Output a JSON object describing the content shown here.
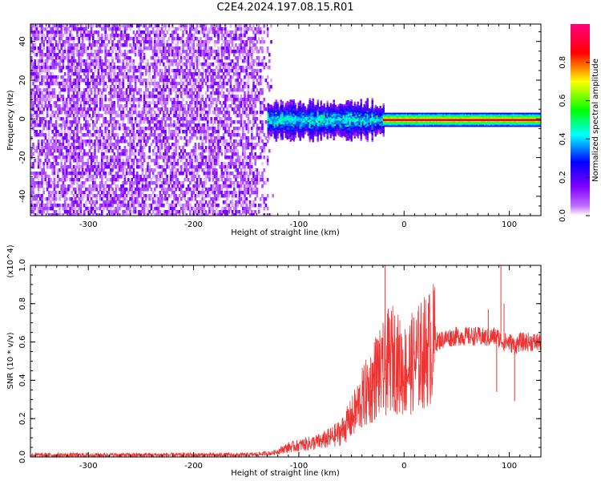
{
  "title": "C2E4.2024.197.08.15.R01",
  "chart_data": [
    {
      "type": "heatmap",
      "xlabel": "Height of straight line (km)",
      "ylabel": "Frequency (Hz)",
      "xlim": [
        -355,
        130
      ],
      "ylim": [
        -50,
        49
      ],
      "xticks": [
        -300,
        -200,
        -100,
        0,
        100
      ],
      "yticks": [
        -40,
        -20,
        0,
        20,
        40
      ],
      "colorbar": {
        "label": "Normalized spectral amplitude",
        "range": [
          0,
          1
        ],
        "ticks": [
          0.0,
          0.2,
          0.4,
          0.6,
          0.8
        ],
        "colormap": [
          "#ffffff",
          "#a000ff",
          "#0000ff",
          "#00ffff",
          "#00ff00",
          "#ffff00",
          "#ff0000",
          "#ff0080"
        ]
      },
      "regions": [
        {
          "x": [
            -355,
            -125
          ],
          "freq": [
            -50,
            49
          ],
          "amplitude": 0.15
        },
        {
          "x": [
            -130,
            -20
          ],
          "freq": [
            -10,
            10
          ],
          "amplitude": 0.35
        },
        {
          "x": [
            -20,
            130
          ],
          "freq": [
            -3,
            3
          ],
          "amplitude": 0.85
        }
      ]
    },
    {
      "type": "line",
      "xlabel": "Height of straight line (km)",
      "ylabel": "SNR (10 * v/v)",
      "yscale_label": "(x10^4)",
      "xlim": [
        -355,
        130
      ],
      "ylim": [
        0,
        1.0
      ],
      "xticks": [
        -300,
        -200,
        -100,
        0,
        100
      ],
      "yticks": [
        0.0,
        0.2,
        0.4,
        0.6,
        0.8,
        1.0
      ],
      "color": "#ee3333",
      "series": [
        {
          "x": [
            -355,
            -300,
            -250,
            -200,
            -150,
            -125,
            -110,
            -100,
            -90,
            -80,
            -70,
            -60,
            -50,
            -40,
            -30,
            -25,
            -20,
            -18,
            -15,
            -10,
            -5,
            0,
            10,
            20,
            30,
            40,
            50,
            60,
            70,
            80,
            85,
            90,
            95,
            100,
            105,
            110,
            120,
            130
          ],
          "values": [
            0.01,
            0.01,
            0.01,
            0.01,
            0.01,
            0.02,
            0.05,
            0.06,
            0.07,
            0.08,
            0.1,
            0.13,
            0.2,
            0.3,
            0.38,
            0.45,
            0.4,
            0.45,
            0.5,
            0.52,
            0.48,
            0.45,
            0.5,
            0.55,
            0.6,
            0.62,
            0.63,
            0.63,
            0.63,
            0.62,
            0.63,
            0.62,
            0.6,
            0.6,
            0.58,
            0.6,
            0.6,
            0.6
          ]
        }
      ],
      "spikes": [
        {
          "x": -18,
          "value": 1.0
        },
        {
          "x": -20,
          "value": 0.7
        },
        {
          "x": -10,
          "value": 0.6
        },
        {
          "x": 88,
          "value": 0.34
        },
        {
          "x": 92,
          "value": 1.0
        },
        {
          "x": 95,
          "value": 0.8
        },
        {
          "x": 105,
          "value": 0.29
        },
        {
          "x": 80,
          "value": 0.77
        }
      ]
    }
  ]
}
